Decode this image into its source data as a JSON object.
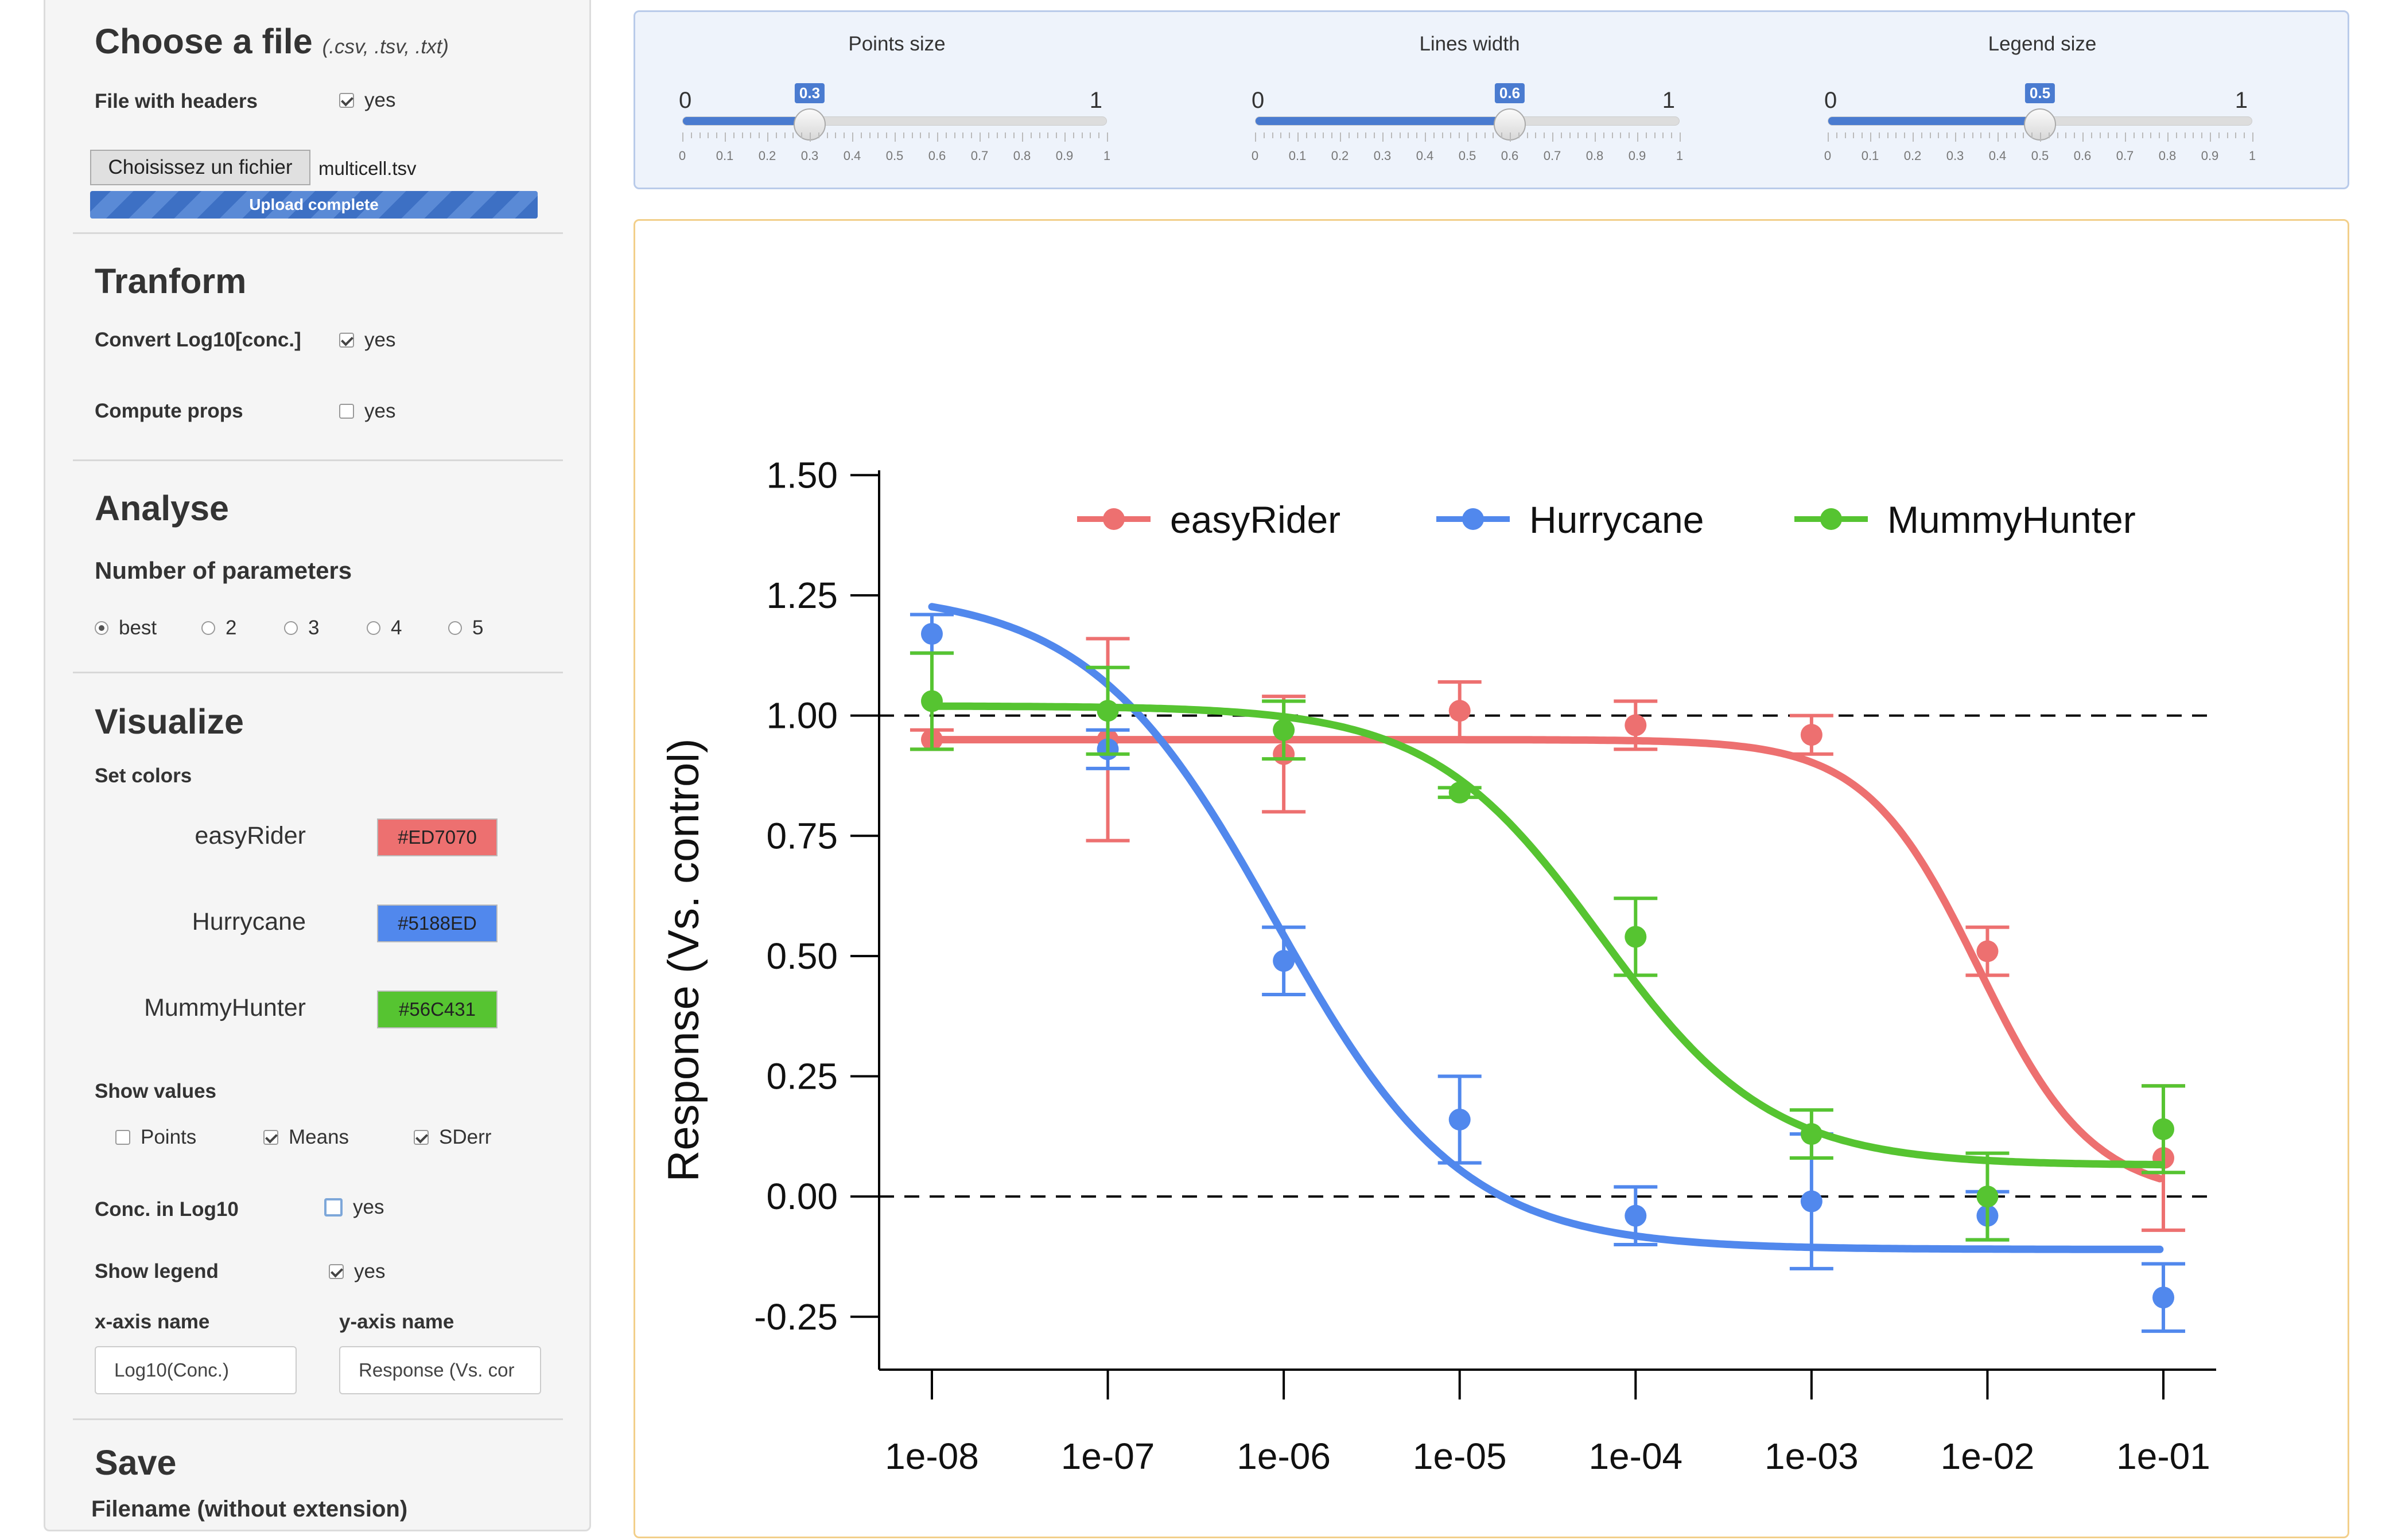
{
  "sidebar": {
    "choose": {
      "title": "Choose a file",
      "subtitle": "(.csv, .tsv, .txt)",
      "headers_label": "File with headers",
      "headers_value": "yes",
      "file_button": "Choisissez un fichier",
      "file_name": "multicell.tsv",
      "progress": "Upload complete",
      "progress_fraction": 1
    },
    "transform": {
      "title": "Tranform",
      "log_label": "Convert Log10[conc.]",
      "log_value": "yes",
      "props_label": "Compute props",
      "props_value": "yes"
    },
    "analyse": {
      "title": "Analyse",
      "nparams_label": "Number of parameters",
      "options": [
        "best",
        "2",
        "3",
        "4",
        "5"
      ]
    },
    "visualize": {
      "title": "Visualize",
      "set_colors": "Set colors",
      "colors": [
        {
          "name": "easyRider",
          "hex": "#ED7070"
        },
        {
          "name": "Hurrycane",
          "hex": "#5188ED"
        },
        {
          "name": "MummyHunter",
          "hex": "#56C431"
        }
      ],
      "show_values": "Show values",
      "points": "Points",
      "means": "Means",
      "sderr": "SDerr",
      "conc_log_label": "Conc. in Log10",
      "conc_log_value": "yes",
      "show_legend_label": "Show legend",
      "show_legend_value": "yes",
      "xaxis_label": "x-axis name",
      "xaxis_value": "Log10(Conc.)",
      "yaxis_label": "y-axis name",
      "yaxis_value": "Response (Vs. cor"
    },
    "save": {
      "title": "Save",
      "filename_label": "Filename (without extension)"
    }
  },
  "sliders": [
    {
      "title": "Points size",
      "min": "0",
      "max": "1",
      "value": 0.3,
      "value_label": "0.3"
    },
    {
      "title": "Lines width",
      "min": "0",
      "max": "1",
      "value": 0.6,
      "value_label": "0.6"
    },
    {
      "title": "Legend size",
      "min": "0",
      "max": "1",
      "value": 0.5,
      "value_label": "0.5"
    }
  ],
  "slider_tick_labels": [
    "0",
    "0.1",
    "0.2",
    "0.3",
    "0.4",
    "0.5",
    "0.6",
    "0.7",
    "0.8",
    "0.9",
    "1"
  ],
  "chart_data": {
    "type": "line",
    "ylabel": "Response (Vs. control)",
    "xscale": "log",
    "x_tick_labels": [
      "1e-08",
      "1e-07",
      "1e-06",
      "1e-05",
      "1e-04",
      "1e-03",
      "1e-02",
      "1e-01"
    ],
    "y_ticks": [
      -0.25,
      0.0,
      0.25,
      0.5,
      0.75,
      1.0,
      1.25,
      1.5
    ],
    "y_tick_labels": [
      "-0.25",
      "0.00",
      "0.25",
      "0.50",
      "0.75",
      "1.00",
      "1.25",
      "1.50"
    ],
    "ylim": [
      -0.36,
      1.51
    ],
    "reference_lines": [
      1.0,
      0.0
    ],
    "legend_position": "top",
    "series": [
      {
        "name": "easyRider",
        "color": "#ED7070",
        "x": [
          1e-08,
          1e-07,
          1e-06,
          1e-05,
          0.0001,
          0.001,
          0.01,
          0.1
        ],
        "means": [
          0.95,
          0.95,
          0.92,
          1.01,
          0.98,
          0.96,
          0.51,
          0.08
        ],
        "err": [
          0.02,
          0.21,
          0.12,
          0.06,
          0.05,
          0.04,
          0.05,
          0.15
        ],
        "fit": {
          "top": 0.95,
          "bottom": 0.0,
          "log_ec50": -2.05,
          "hill": 1.35
        }
      },
      {
        "name": "Hurrycane",
        "color": "#5188ED",
        "x": [
          1e-08,
          1e-07,
          1e-06,
          1e-05,
          0.0001,
          0.001,
          0.01,
          0.1
        ],
        "means": [
          1.17,
          0.93,
          0.49,
          0.16,
          -0.04,
          -0.01,
          -0.04,
          -0.21
        ],
        "err": [
          0.04,
          0.04,
          0.07,
          0.09,
          0.06,
          0.14,
          0.05,
          0.07
        ],
        "fit": {
          "top": 1.26,
          "bottom": -0.11,
          "log_ec50": -6.05,
          "hill": 0.82
        }
      },
      {
        "name": "MummyHunter",
        "color": "#56C431",
        "x": [
          1e-08,
          1e-07,
          1e-06,
          1e-05,
          0.0001,
          0.001,
          0.01,
          0.1
        ],
        "means": [
          1.03,
          1.01,
          0.97,
          0.84,
          0.54,
          0.13,
          0.0,
          0.14
        ],
        "err": [
          0.1,
          0.09,
          0.06,
          0.01,
          0.08,
          0.05,
          0.09,
          0.09
        ],
        "fit": {
          "top": 1.02,
          "bottom": 0.065,
          "log_ec50": -4.2,
          "hill": 0.9
        }
      }
    ]
  }
}
